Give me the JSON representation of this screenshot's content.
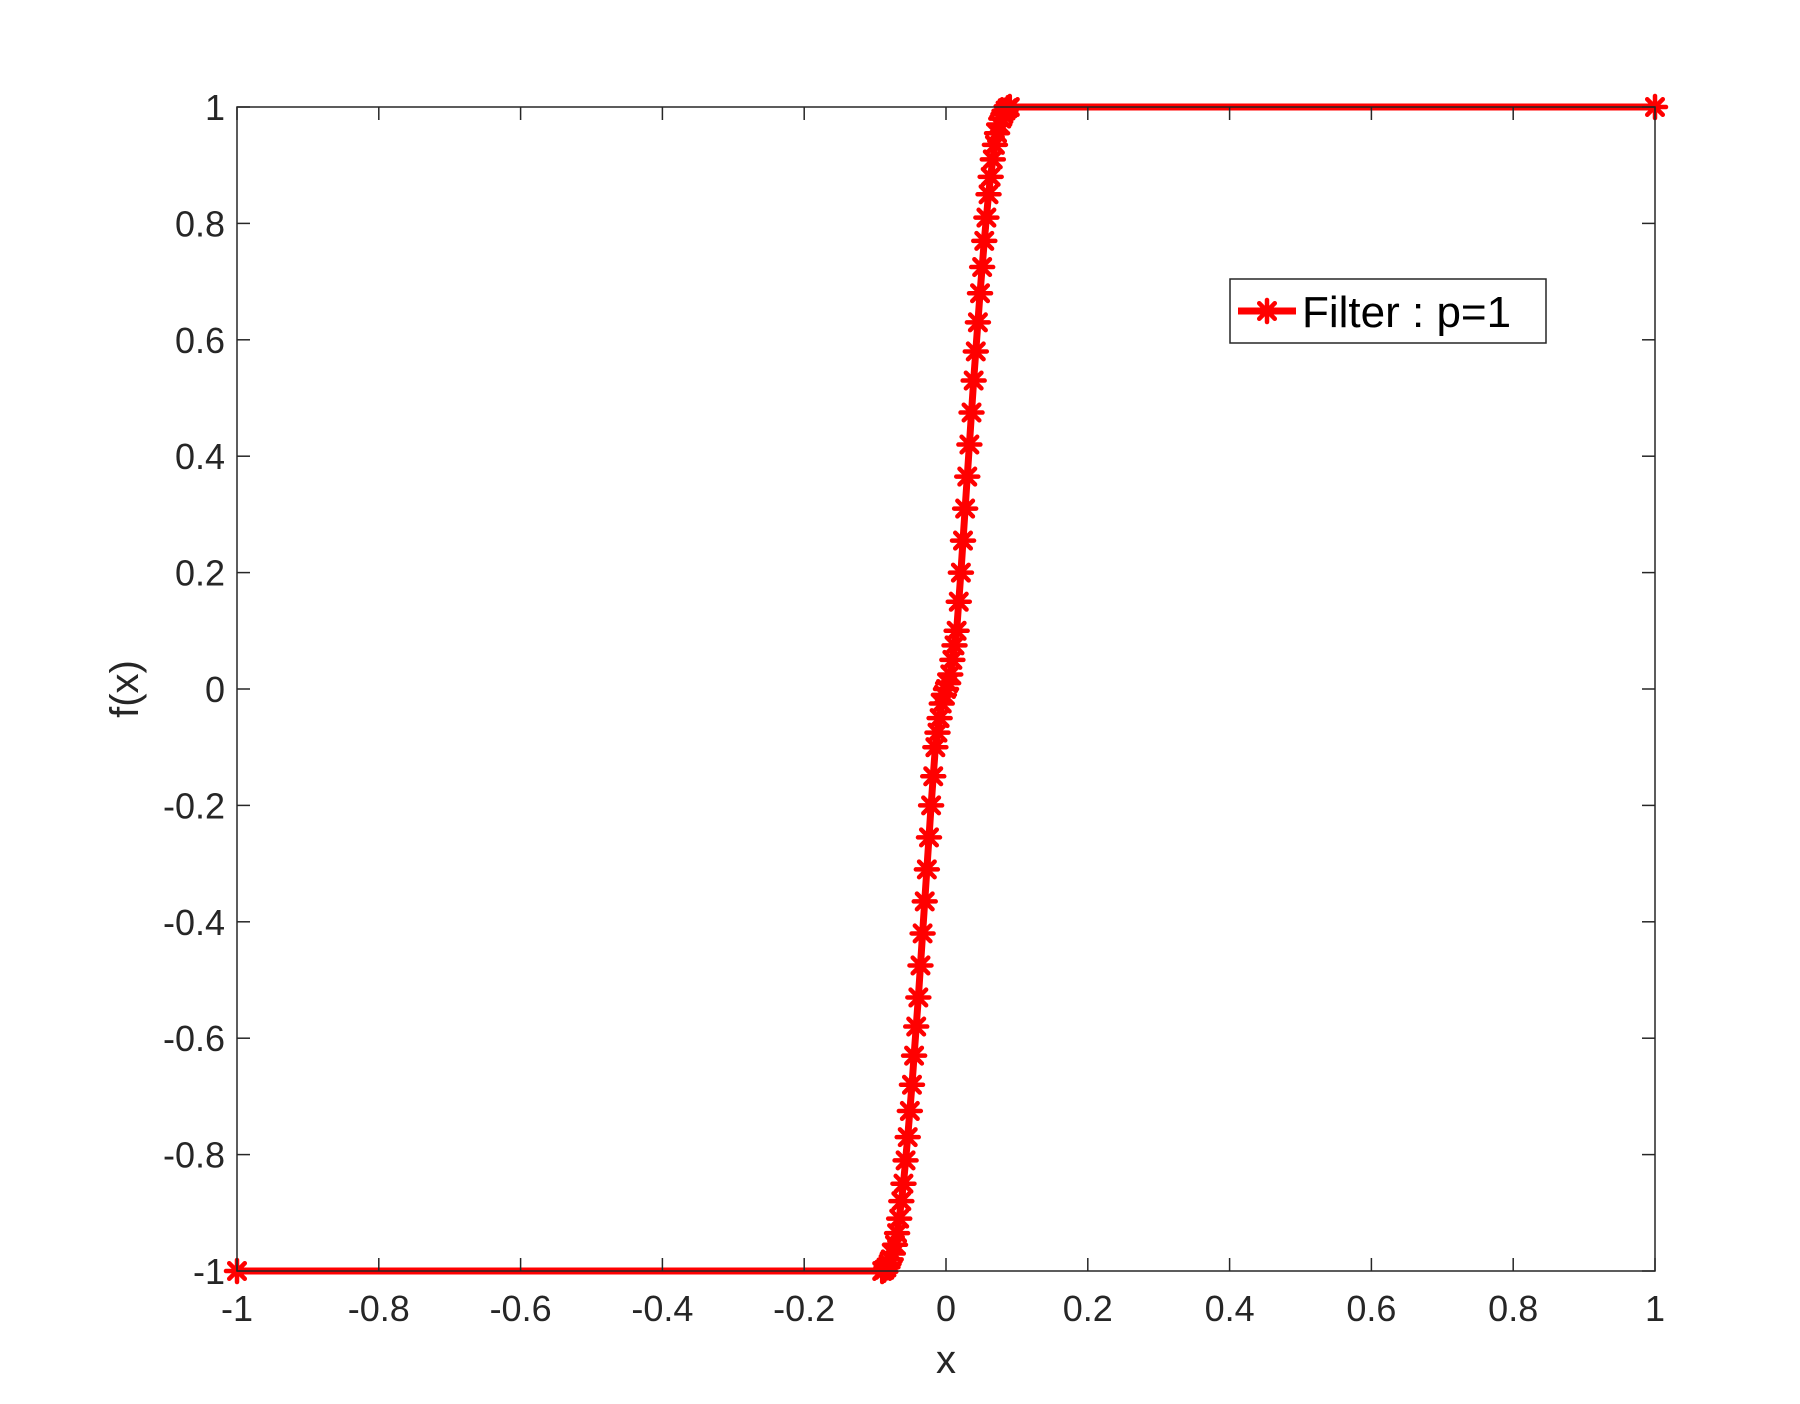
{
  "chart_data": {
    "type": "line",
    "title": "",
    "xlabel": "x",
    "ylabel": "f(x)",
    "xlim": [
      -1,
      1
    ],
    "ylim": [
      -1,
      1
    ],
    "xticks": [
      -1,
      -0.8,
      -0.6,
      -0.4,
      -0.2,
      0,
      0.2,
      0.4,
      0.6,
      0.8,
      1
    ],
    "xtick_labels": [
      "-1",
      "-0.8",
      "-0.6",
      "-0.4",
      "-0.2",
      "0",
      "0.2",
      "0.4",
      "0.6",
      "0.8",
      "1"
    ],
    "yticks": [
      -1,
      -0.8,
      -0.6,
      -0.4,
      -0.2,
      0,
      0.2,
      0.4,
      0.6,
      0.8,
      1
    ],
    "ytick_labels": [
      "-1",
      "-0.8",
      "-0.6",
      "-0.4",
      "-0.2",
      "0",
      "0.2",
      "0.4",
      "0.6",
      "0.8",
      "1"
    ],
    "grid": false,
    "legend_position": "top-right",
    "series": [
      {
        "name": "Filter : p=1",
        "color": "#ff0000",
        "marker": "asterisk",
        "x": [
          -1,
          -0.09,
          -0.087,
          -0.084,
          -0.081,
          -0.078,
          -0.075,
          -0.072,
          -0.069,
          -0.066,
          -0.063,
          -0.06,
          -0.057,
          -0.054,
          -0.051,
          -0.048,
          -0.045,
          -0.042,
          -0.039,
          -0.036,
          -0.033,
          -0.03,
          -0.027,
          -0.024,
          -0.021,
          -0.018,
          -0.015,
          -0.012,
          -0.009,
          -0.006,
          -0.003,
          0,
          0.003,
          0.006,
          0.009,
          0.012,
          0.015,
          0.018,
          0.021,
          0.024,
          0.027,
          0.03,
          0.033,
          0.036,
          0.039,
          0.042,
          0.045,
          0.048,
          0.051,
          0.054,
          0.057,
          0.06,
          0.063,
          0.066,
          0.069,
          0.072,
          0.075,
          0.078,
          0.081,
          0.084,
          0.087,
          0.09,
          1
        ],
        "y": [
          -1,
          -1,
          -0.998,
          -0.994,
          -0.988,
          -0.98,
          -0.97,
          -0.955,
          -0.935,
          -0.91,
          -0.88,
          -0.85,
          -0.81,
          -0.77,
          -0.725,
          -0.68,
          -0.63,
          -0.58,
          -0.53,
          -0.475,
          -0.42,
          -0.365,
          -0.31,
          -0.255,
          -0.2,
          -0.15,
          -0.1,
          -0.075,
          -0.05,
          -0.025,
          -0.01,
          0,
          0.01,
          0.025,
          0.05,
          0.075,
          0.1,
          0.15,
          0.2,
          0.255,
          0.31,
          0.365,
          0.42,
          0.475,
          0.53,
          0.58,
          0.63,
          0.68,
          0.725,
          0.77,
          0.81,
          0.85,
          0.88,
          0.91,
          0.935,
          0.955,
          0.97,
          0.98,
          0.988,
          0.994,
          0.998,
          1,
          1
        ]
      }
    ]
  }
}
